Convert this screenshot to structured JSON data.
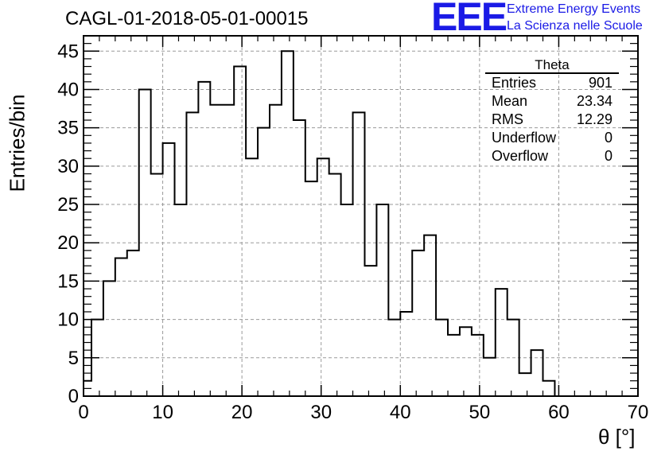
{
  "header": {
    "title": "CAGL-01-2018-05-01-00015",
    "logo_mark": "EEE",
    "logo_line1": "Extreme Energy Events",
    "logo_line2": "La Scienza nelle Scuole",
    "logo_color": "#1a1ae6"
  },
  "stats_box": {
    "title": "Theta",
    "rows": [
      {
        "label": "Entries",
        "value": "901"
      },
      {
        "label": "Mean",
        "value": "23.34"
      },
      {
        "label": "RMS",
        "value": "12.29"
      },
      {
        "label": "Underflow",
        "value": "0"
      },
      {
        "label": "Overflow",
        "value": "0"
      }
    ]
  },
  "chart_data": {
    "type": "histogram",
    "title": "CAGL-01-2018-05-01-00015",
    "xlabel": "θ [°]",
    "ylabel": "Entries/bin",
    "xlim": [
      0,
      70
    ],
    "ylim": [
      0,
      47
    ],
    "bin_width": 1.5,
    "x_ticks": [
      0,
      10,
      20,
      30,
      40,
      50,
      60,
      70
    ],
    "y_ticks": [
      0,
      5,
      10,
      15,
      20,
      25,
      30,
      35,
      40,
      45
    ],
    "grid": true,
    "line_color": "#000000",
    "bins": [
      {
        "x0": 0,
        "x1": 1,
        "count": 2
      },
      {
        "x0": 1,
        "x1": 2.5,
        "count": 10
      },
      {
        "x0": 2.5,
        "x1": 4,
        "count": 15
      },
      {
        "x0": 4,
        "x1": 5.5,
        "count": 18
      },
      {
        "x0": 5.5,
        "x1": 7,
        "count": 19
      },
      {
        "x0": 7,
        "x1": 8.5,
        "count": 40
      },
      {
        "x0": 8.5,
        "x1": 10,
        "count": 29
      },
      {
        "x0": 10,
        "x1": 11.5,
        "count": 33
      },
      {
        "x0": 11.5,
        "x1": 13,
        "count": 25
      },
      {
        "x0": 13,
        "x1": 14.5,
        "count": 37
      },
      {
        "x0": 14.5,
        "x1": 16,
        "count": 41
      },
      {
        "x0": 16,
        "x1": 17.5,
        "count": 38
      },
      {
        "x0": 17.5,
        "x1": 19,
        "count": 38
      },
      {
        "x0": 19,
        "x1": 20.5,
        "count": 43
      },
      {
        "x0": 20.5,
        "x1": 22,
        "count": 31
      },
      {
        "x0": 22,
        "x1": 23.5,
        "count": 35
      },
      {
        "x0": 23.5,
        "x1": 25,
        "count": 38
      },
      {
        "x0": 25,
        "x1": 26.5,
        "count": 45
      },
      {
        "x0": 26.5,
        "x1": 28,
        "count": 36
      },
      {
        "x0": 28,
        "x1": 29.5,
        "count": 28
      },
      {
        "x0": 29.5,
        "x1": 31,
        "count": 31
      },
      {
        "x0": 31,
        "x1": 32.5,
        "count": 29
      },
      {
        "x0": 32.5,
        "x1": 34,
        "count": 25
      },
      {
        "x0": 34,
        "x1": 35.5,
        "count": 37
      },
      {
        "x0": 35.5,
        "x1": 37,
        "count": 17
      },
      {
        "x0": 37,
        "x1": 38.5,
        "count": 25
      },
      {
        "x0": 38.5,
        "x1": 40,
        "count": 10
      },
      {
        "x0": 40,
        "x1": 41.5,
        "count": 11
      },
      {
        "x0": 41.5,
        "x1": 43,
        "count": 19
      },
      {
        "x0": 43,
        "x1": 44.5,
        "count": 21
      },
      {
        "x0": 44.5,
        "x1": 46,
        "count": 10
      },
      {
        "x0": 46,
        "x1": 47.5,
        "count": 8
      },
      {
        "x0": 47.5,
        "x1": 49,
        "count": 9
      },
      {
        "x0": 49,
        "x1": 50.5,
        "count": 8
      },
      {
        "x0": 50.5,
        "x1": 52,
        "count": 5
      },
      {
        "x0": 52,
        "x1": 53.5,
        "count": 14
      },
      {
        "x0": 53.5,
        "x1": 55,
        "count": 10
      },
      {
        "x0": 55,
        "x1": 56.5,
        "count": 3
      },
      {
        "x0": 56.5,
        "x1": 58,
        "count": 6
      },
      {
        "x0": 58,
        "x1": 59.5,
        "count": 2
      }
    ]
  }
}
